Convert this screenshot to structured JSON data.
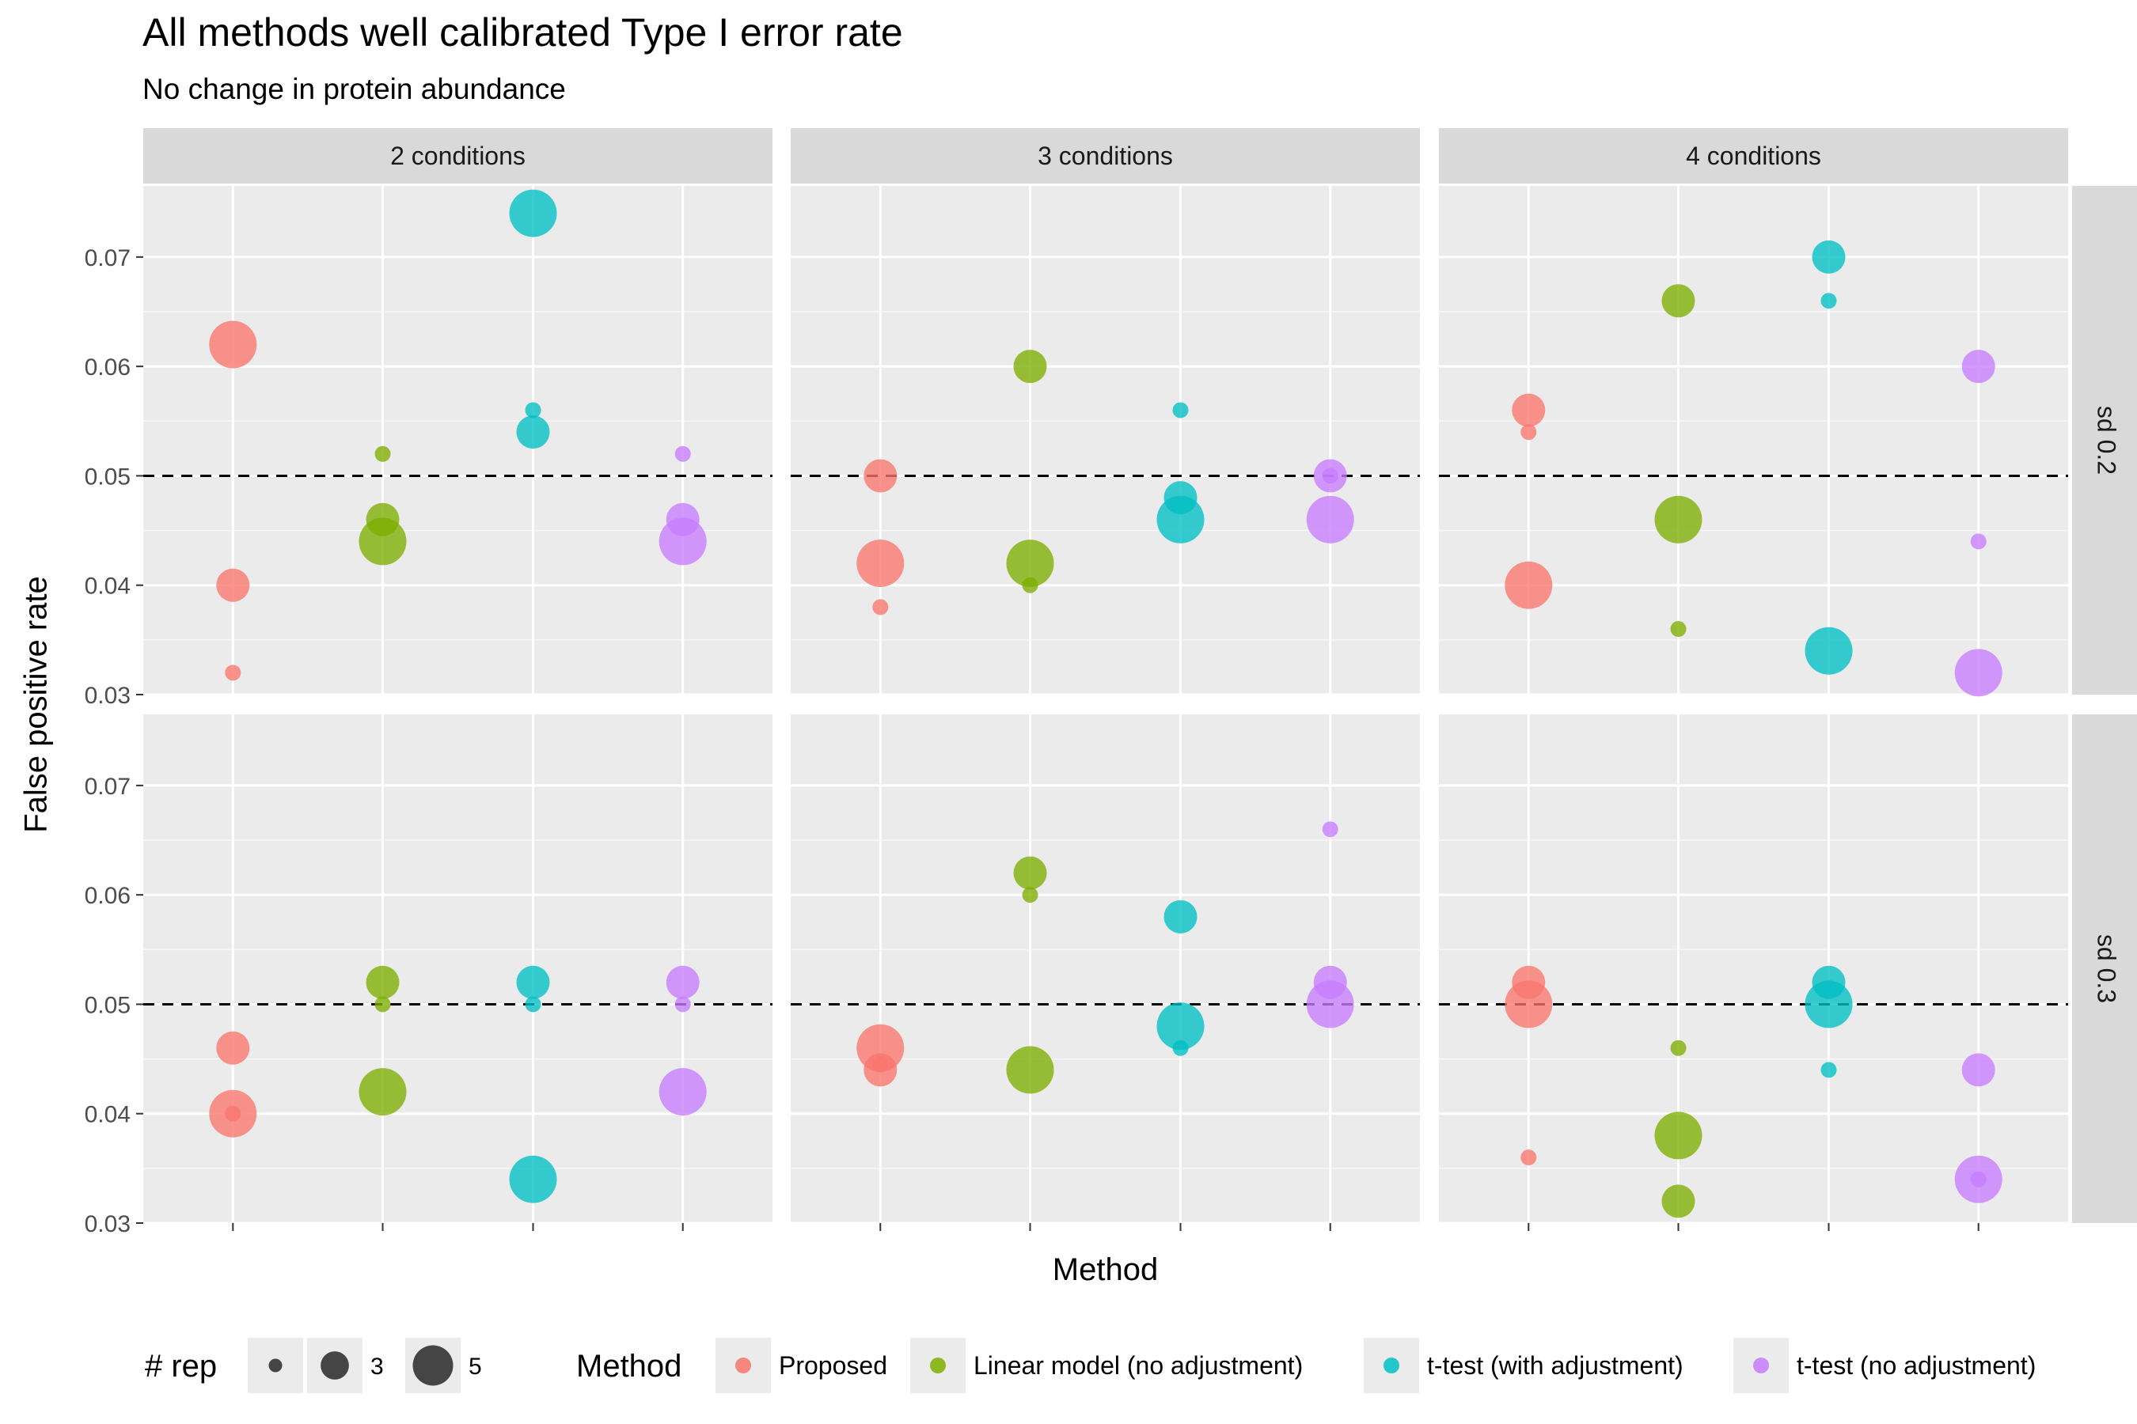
{
  "chart_data": {
    "type": "scatter",
    "title": "All methods well calibrated Type I error rate",
    "subtitle": "No change in protein abundance",
    "xlabel": "Method",
    "ylabel": "False positive rate",
    "ylim": [
      0.03,
      0.0765
    ],
    "yticks": [
      0.03,
      0.04,
      0.05,
      0.06,
      0.07
    ],
    "ytick_labels": [
      "0.03",
      "0.04",
      "0.05",
      "0.06",
      "0.07"
    ],
    "reference_line": 0.05,
    "grid": true,
    "legend_position": "bottom",
    "facet_columns": [
      "2 conditions",
      "3 conditions",
      "4 conditions"
    ],
    "facet_rows": [
      "sd 0.2",
      "sd 0.3"
    ],
    "methods": [
      {
        "name": "Proposed",
        "color": "#F8766D"
      },
      {
        "name": "Linear model (no adjustment)",
        "color": "#7CAE00"
      },
      {
        "name": "t-test (with adjustment)",
        "color": "#00BFC4"
      },
      {
        "name": "t-test (no adjustment)",
        "color": "#C77CFF"
      }
    ],
    "size_legend": {
      "title": "# rep",
      "values": [
        2,
        3,
        5
      ]
    },
    "color_legend_title": "Method",
    "panels": [
      {
        "column": "2 conditions",
        "row": "sd 0.2",
        "points": [
          {
            "method": 0,
            "rep": 5,
            "y": 0.062
          },
          {
            "method": 0,
            "rep": 3,
            "y": 0.04
          },
          {
            "method": 0,
            "rep": 2,
            "y": 0.032
          },
          {
            "method": 1,
            "rep": 2,
            "y": 0.052
          },
          {
            "method": 1,
            "rep": 3,
            "y": 0.046
          },
          {
            "method": 1,
            "rep": 5,
            "y": 0.044
          },
          {
            "method": 2,
            "rep": 5,
            "y": 0.074
          },
          {
            "method": 2,
            "rep": 2,
            "y": 0.056
          },
          {
            "method": 2,
            "rep": 3,
            "y": 0.054
          },
          {
            "method": 3,
            "rep": 2,
            "y": 0.052
          },
          {
            "method": 3,
            "rep": 3,
            "y": 0.046
          },
          {
            "method": 3,
            "rep": 5,
            "y": 0.044
          }
        ]
      },
      {
        "column": "3 conditions",
        "row": "sd 0.2",
        "points": [
          {
            "method": 0,
            "rep": 3,
            "y": 0.05
          },
          {
            "method": 0,
            "rep": 5,
            "y": 0.042
          },
          {
            "method": 0,
            "rep": 2,
            "y": 0.038
          },
          {
            "method": 1,
            "rep": 3,
            "y": 0.06
          },
          {
            "method": 1,
            "rep": 5,
            "y": 0.042
          },
          {
            "method": 1,
            "rep": 2,
            "y": 0.04
          },
          {
            "method": 2,
            "rep": 2,
            "y": 0.056
          },
          {
            "method": 2,
            "rep": 3,
            "y": 0.048
          },
          {
            "method": 2,
            "rep": 5,
            "y": 0.046
          },
          {
            "method": 3,
            "rep": 3,
            "y": 0.05
          },
          {
            "method": 3,
            "rep": 2,
            "y": 0.05
          },
          {
            "method": 3,
            "rep": 5,
            "y": 0.046
          }
        ]
      },
      {
        "column": "4 conditions",
        "row": "sd 0.2",
        "points": [
          {
            "method": 0,
            "rep": 3,
            "y": 0.056
          },
          {
            "method": 0,
            "rep": 2,
            "y": 0.054
          },
          {
            "method": 0,
            "rep": 5,
            "y": 0.04
          },
          {
            "method": 1,
            "rep": 3,
            "y": 0.066
          },
          {
            "method": 1,
            "rep": 5,
            "y": 0.046
          },
          {
            "method": 1,
            "rep": 2,
            "y": 0.036
          },
          {
            "method": 2,
            "rep": 3,
            "y": 0.07
          },
          {
            "method": 2,
            "rep": 2,
            "y": 0.066
          },
          {
            "method": 2,
            "rep": 5,
            "y": 0.034
          },
          {
            "method": 3,
            "rep": 3,
            "y": 0.06
          },
          {
            "method": 3,
            "rep": 2,
            "y": 0.044
          },
          {
            "method": 3,
            "rep": 5,
            "y": 0.032
          }
        ]
      },
      {
        "column": "2 conditions",
        "row": "sd 0.3",
        "points": [
          {
            "method": 0,
            "rep": 3,
            "y": 0.046
          },
          {
            "method": 0,
            "rep": 5,
            "y": 0.04
          },
          {
            "method": 0,
            "rep": 2,
            "y": 0.04
          },
          {
            "method": 1,
            "rep": 3,
            "y": 0.052
          },
          {
            "method": 1,
            "rep": 2,
            "y": 0.05
          },
          {
            "method": 1,
            "rep": 5,
            "y": 0.042
          },
          {
            "method": 2,
            "rep": 3,
            "y": 0.052
          },
          {
            "method": 2,
            "rep": 2,
            "y": 0.05
          },
          {
            "method": 2,
            "rep": 5,
            "y": 0.034
          },
          {
            "method": 3,
            "rep": 3,
            "y": 0.052
          },
          {
            "method": 3,
            "rep": 2,
            "y": 0.05
          },
          {
            "method": 3,
            "rep": 5,
            "y": 0.042
          }
        ]
      },
      {
        "column": "3 conditions",
        "row": "sd 0.3",
        "points": [
          {
            "method": 0,
            "rep": 5,
            "y": 0.046
          },
          {
            "method": 0,
            "rep": 3,
            "y": 0.044
          },
          {
            "method": 0,
            "rep": 2,
            "y": 0.0445
          },
          {
            "method": 1,
            "rep": 3,
            "y": 0.062
          },
          {
            "method": 1,
            "rep": 2,
            "y": 0.06
          },
          {
            "method": 1,
            "rep": 5,
            "y": 0.044
          },
          {
            "method": 2,
            "rep": 3,
            "y": 0.058
          },
          {
            "method": 2,
            "rep": 5,
            "y": 0.048
          },
          {
            "method": 2,
            "rep": 2,
            "y": 0.046
          },
          {
            "method": 3,
            "rep": 2,
            "y": 0.066
          },
          {
            "method": 3,
            "rep": 3,
            "y": 0.052
          },
          {
            "method": 3,
            "rep": 5,
            "y": 0.05
          }
        ]
      },
      {
        "column": "4 conditions",
        "row": "sd 0.3",
        "points": [
          {
            "method": 0,
            "rep": 3,
            "y": 0.052
          },
          {
            "method": 0,
            "rep": 5,
            "y": 0.05
          },
          {
            "method": 0,
            "rep": 2,
            "y": 0.036
          },
          {
            "method": 1,
            "rep": 2,
            "y": 0.046
          },
          {
            "method": 1,
            "rep": 5,
            "y": 0.038
          },
          {
            "method": 1,
            "rep": 3,
            "y": 0.032
          },
          {
            "method": 2,
            "rep": 3,
            "y": 0.052
          },
          {
            "method": 2,
            "rep": 5,
            "y": 0.05
          },
          {
            "method": 2,
            "rep": 2,
            "y": 0.044
          },
          {
            "method": 3,
            "rep": 3,
            "y": 0.044
          },
          {
            "method": 3,
            "rep": 5,
            "y": 0.034
          },
          {
            "method": 3,
            "rep": 2,
            "y": 0.034
          }
        ]
      }
    ]
  }
}
